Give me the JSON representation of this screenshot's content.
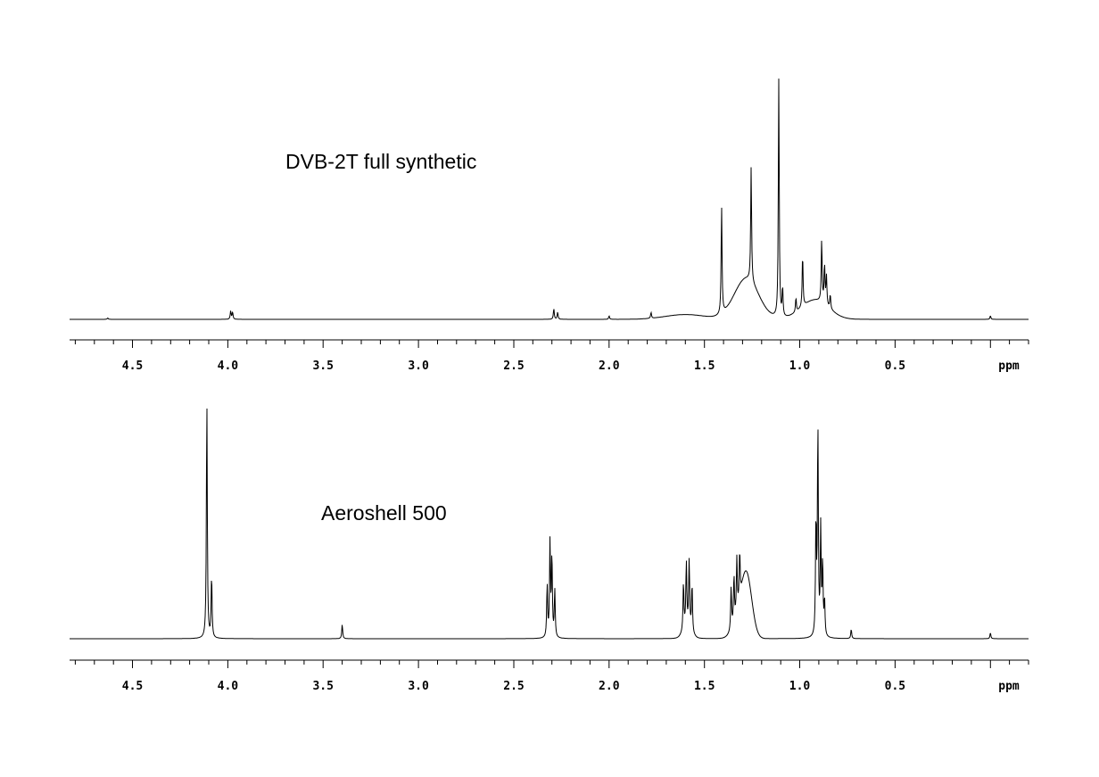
{
  "chart_data": [
    {
      "type": "line",
      "title": "DVB-2T full synthetic",
      "xlabel": "ppm",
      "ylabel": "",
      "xlim": [
        4.83,
        -0.2
      ],
      "ylim": [
        0,
        1.15
      ],
      "x_ticks": [
        "4.5",
        "4.0",
        "3.5",
        "3.0",
        "2.5",
        "2.0",
        "1.5",
        "1.0",
        "0.5"
      ],
      "grid": false,
      "peaks": [
        {
          "ppm": 4.63,
          "height": 0.006
        },
        {
          "ppm": 3.985,
          "height": 0.035
        },
        {
          "ppm": 3.975,
          "height": 0.03
        },
        {
          "ppm": 2.29,
          "height": 0.045
        },
        {
          "ppm": 2.27,
          "height": 0.03
        },
        {
          "ppm": 2.0,
          "height": 0.015
        },
        {
          "ppm": 1.78,
          "height": 0.025
        },
        {
          "ppm": 1.41,
          "height": 0.45
        },
        {
          "ppm": 1.255,
          "height": 0.48
        },
        {
          "ppm": 1.11,
          "height": 1.0
        },
        {
          "ppm": 1.09,
          "height": 0.12
        },
        {
          "ppm": 1.02,
          "height": 0.06
        },
        {
          "ppm": 0.985,
          "height": 0.22
        },
        {
          "ppm": 0.885,
          "height": 0.26
        },
        {
          "ppm": 0.87,
          "height": 0.16
        },
        {
          "ppm": 0.86,
          "height": 0.12
        },
        {
          "ppm": 0.84,
          "height": 0.06
        },
        {
          "ppm": 0.0,
          "height": 0.015
        }
      ],
      "broad_humps": [
        {
          "ppm": 1.6,
          "height": 0.02,
          "width": 0.15
        },
        {
          "ppm": 1.28,
          "height": 0.17,
          "width": 0.09
        },
        {
          "ppm": 0.92,
          "height": 0.08,
          "width": 0.1
        }
      ]
    },
    {
      "type": "line",
      "title": "Aeroshell 500",
      "xlabel": "ppm",
      "ylabel": "",
      "xlim": [
        4.83,
        -0.2
      ],
      "ylim": [
        0,
        1.15
      ],
      "x_ticks": [
        "4.5",
        "4.0",
        "3.5",
        "3.0",
        "2.5",
        "2.0",
        "1.5",
        "1.0",
        "0.5"
      ],
      "grid": false,
      "peaks": [
        {
          "ppm": 4.11,
          "height": 1.0
        },
        {
          "ppm": 4.085,
          "height": 0.26
        },
        {
          "ppm": 3.4,
          "height": 0.06
        },
        {
          "ppm": 2.325,
          "height": 0.22
        },
        {
          "ppm": 2.31,
          "height": 0.4
        },
        {
          "ppm": 2.3,
          "height": 0.34
        },
        {
          "ppm": 2.285,
          "height": 0.2
        },
        {
          "ppm": 1.61,
          "height": 0.2
        },
        {
          "ppm": 1.595,
          "height": 0.27
        },
        {
          "ppm": 1.58,
          "height": 0.28
        },
        {
          "ppm": 1.565,
          "height": 0.2
        },
        {
          "ppm": 1.36,
          "height": 0.18
        },
        {
          "ppm": 1.345,
          "height": 0.2
        },
        {
          "ppm": 1.33,
          "height": 0.23
        },
        {
          "ppm": 1.315,
          "height": 0.2
        },
        {
          "ppm": 0.915,
          "height": 0.48
        },
        {
          "ppm": 0.905,
          "height": 0.88
        },
        {
          "ppm": 0.89,
          "height": 0.45
        },
        {
          "ppm": 0.88,
          "height": 0.3
        },
        {
          "ppm": 0.87,
          "height": 0.15
        },
        {
          "ppm": 0.73,
          "height": 0.04
        },
        {
          "ppm": 0.0,
          "height": 0.025
        }
      ],
      "broad_humps": [
        {
          "ppm": 1.28,
          "height": 0.27,
          "width": 0.04
        },
        {
          "ppm": 1.59,
          "height": 0.05,
          "width": 0.03
        },
        {
          "ppm": 1.33,
          "height": 0.05,
          "width": 0.04
        }
      ]
    }
  ]
}
